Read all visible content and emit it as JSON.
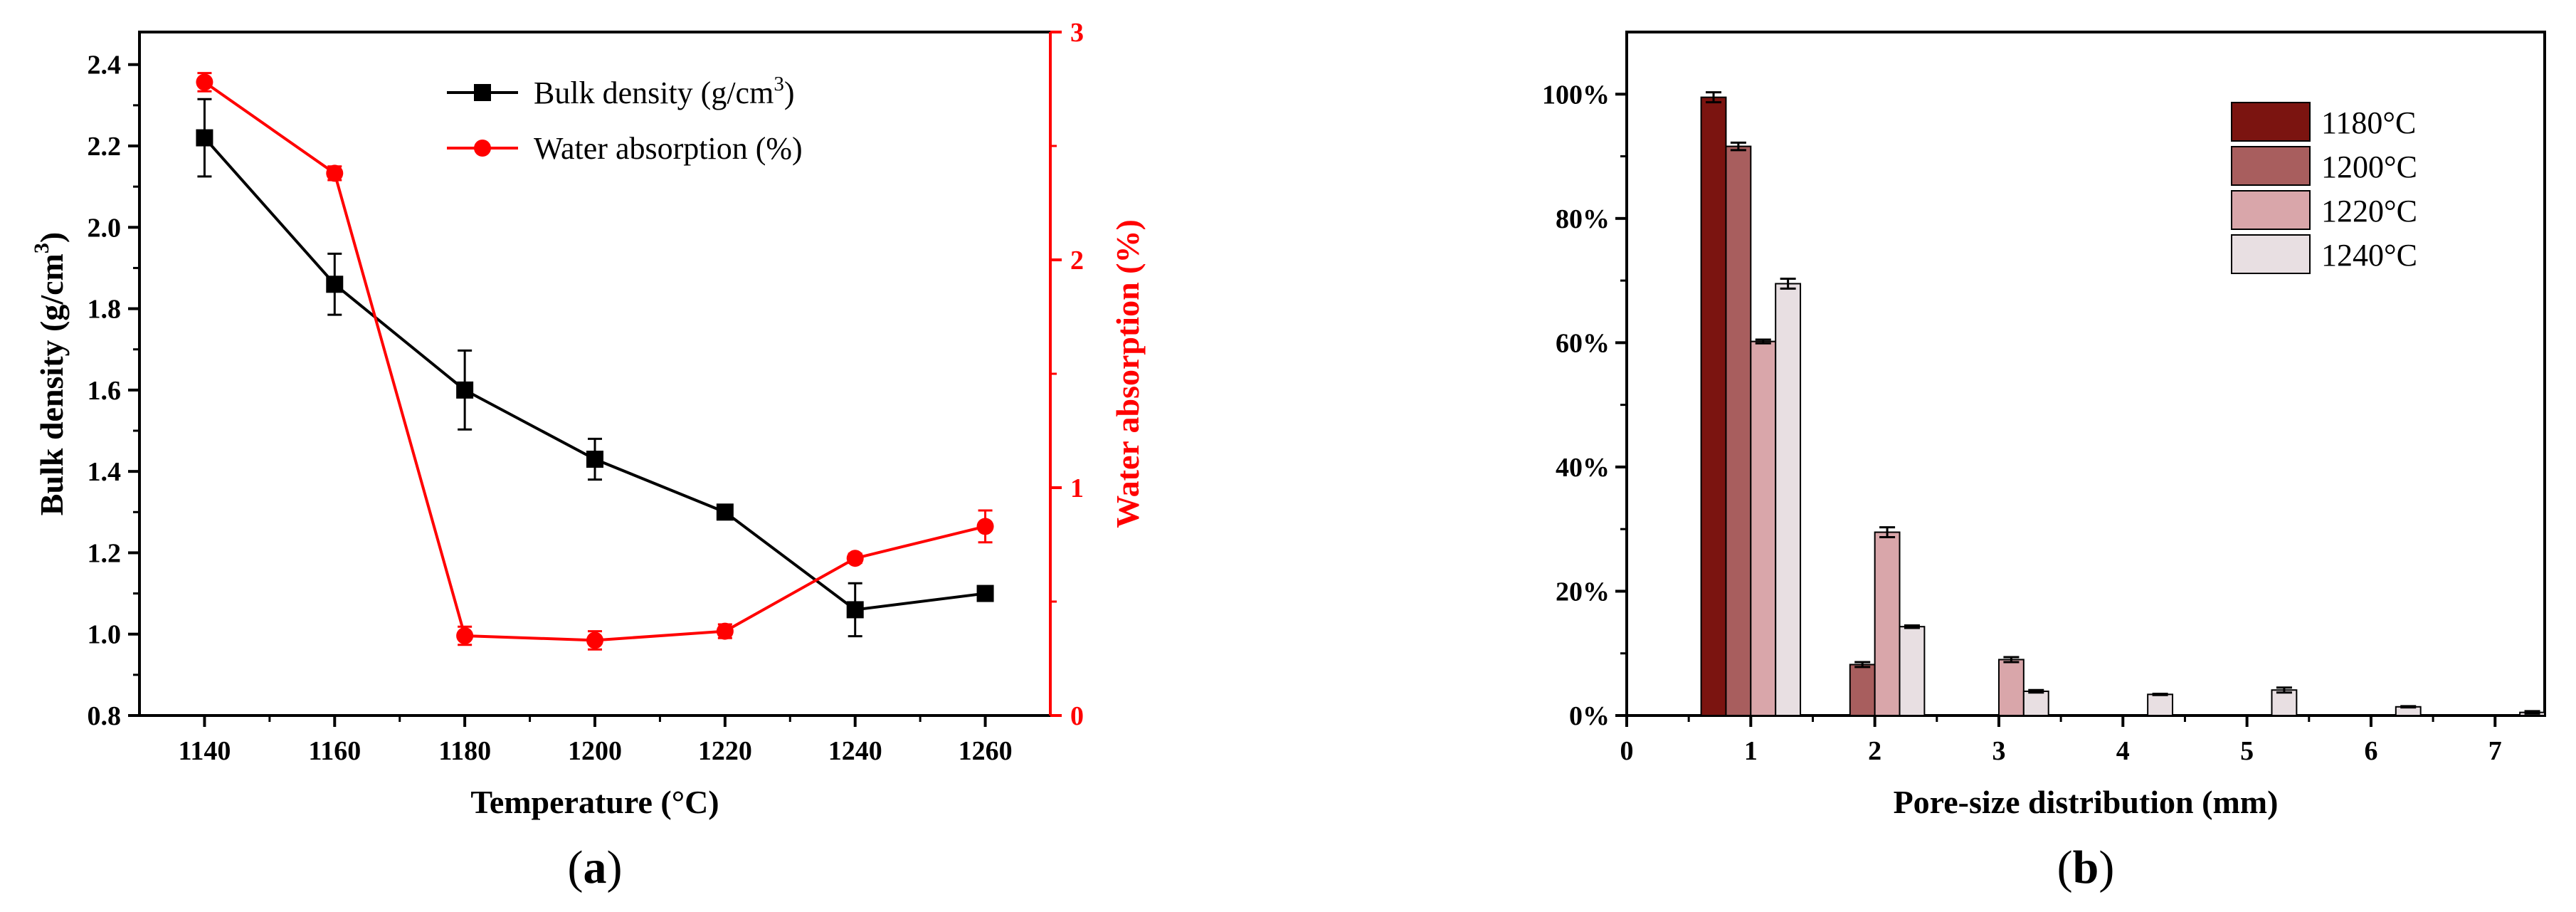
{
  "chart_data": [
    {
      "panel_label": {
        "open": "(",
        "letter": "a",
        "close": ")"
      },
      "type": "line",
      "x": [
        1140,
        1160,
        1180,
        1200,
        1220,
        1240,
        1260
      ],
      "x_ticks": [
        "1140",
        "1160",
        "1180",
        "1200",
        "1220",
        "1240",
        "1260"
      ],
      "xlim": [
        1130,
        1270
      ],
      "xlabel": "Temperature (°C)",
      "ylabel": {
        "text": "Bulk density (g/cm",
        "sup": "3",
        "close": ")"
      },
      "ylim": [
        0.8,
        2.48
      ],
      "y_ticks": [
        "0.8",
        "1.0",
        "1.2",
        "1.4",
        "1.6",
        "1.8",
        "2.0",
        "2.2",
        "2.4"
      ],
      "ylabel_right": "Water absorption (%)",
      "ylim_right": [
        0,
        3.0
      ],
      "y_ticks_right": [
        "0",
        "1",
        "2",
        "3"
      ],
      "series": [
        {
          "name": "Bulk density (g/cm",
          "name_sup": "3",
          "name_close": ")",
          "axis": "left",
          "color": "#000000",
          "marker": "square",
          "values": [
            2.22,
            1.86,
            1.6,
            1.43,
            1.3,
            1.06,
            1.1
          ],
          "errors": [
            0.095,
            0.075,
            0.097,
            0.05,
            0.012,
            0.065,
            0.012
          ]
        },
        {
          "name": "Water absorption (%)",
          "axis": "right",
          "color": "#ff0000",
          "marker": "circle",
          "values": [
            2.78,
            2.38,
            0.35,
            0.33,
            0.37,
            0.69,
            0.83
          ],
          "errors": [
            0.04,
            0.03,
            0.04,
            0.04,
            0.03,
            0.02,
            0.07
          ]
        }
      ],
      "legend_position": "top-center"
    },
    {
      "panel_label": {
        "open": "(",
        "letter": "b",
        "close": ")"
      },
      "type": "bar",
      "xlabel": "Pore-size distribution (mm)",
      "xlim": [
        0,
        7.4
      ],
      "x_ticks": [
        "0",
        "1",
        "2",
        "3",
        "4",
        "5",
        "6",
        "7"
      ],
      "ylim": [
        0,
        110
      ],
      "y_ticks": [
        "0%",
        "20%",
        "40%",
        "60%",
        "80%",
        "100%"
      ],
      "categories": [
        1,
        2,
        3,
        4,
        5,
        6,
        7
      ],
      "series": [
        {
          "name": "1180°C",
          "color": "#7b1410",
          "values": [
            99.5,
            0,
            0,
            0,
            0,
            0,
            0
          ],
          "errors": [
            0.8,
            0,
            0,
            0,
            0,
            0,
            0
          ]
        },
        {
          "name": "1200°C",
          "color": "#a85e5e",
          "values": [
            91.6,
            8.2,
            0,
            0,
            0,
            0,
            0
          ],
          "errors": [
            0.6,
            0.4,
            0,
            0,
            0,
            0,
            0
          ]
        },
        {
          "name": "1220°C",
          "color": "#d9a6aa",
          "values": [
            60.2,
            29.5,
            9.0,
            0,
            0,
            0,
            0
          ],
          "errors": [
            0.3,
            0.8,
            0.4,
            0,
            0,
            0,
            0
          ]
        },
        {
          "name": "1240°C",
          "color": "#e8dfe2",
          "values": [
            69.5,
            14.3,
            3.9,
            3.4,
            4.1,
            1.4,
            0.5
          ],
          "errors": [
            0.8,
            0.2,
            0.2,
            0.1,
            0.4,
            0.1,
            0.2
          ]
        }
      ],
      "legend_position": "top-right"
    }
  ]
}
